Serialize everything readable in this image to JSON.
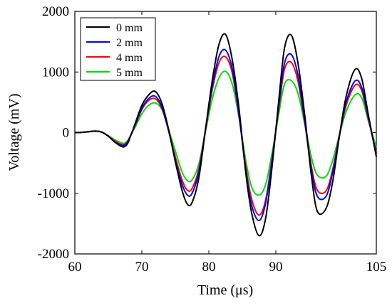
{
  "chart_data": {
    "type": "line",
    "title": "",
    "xlabel": "Time (μs)",
    "ylabel": "Voltage (mV)",
    "xlim": [
      60,
      105
    ],
    "ylim": [
      -2000,
      2000
    ],
    "x_ticks": [
      60,
      70,
      80,
      90,
      105
    ],
    "y_ticks": [
      -2000,
      -1000,
      0,
      1000,
      2000
    ],
    "grid": false,
    "legend_position": "top-left",
    "series": [
      {
        "name": "0 mm",
        "color": "#000000",
        "x": [
          60,
          61,
          62,
          63,
          64,
          65,
          66,
          67,
          67.5,
          68,
          69,
          70,
          71,
          72,
          73,
          74,
          75,
          76,
          76.8,
          77.5,
          78.5,
          79.5,
          80.5,
          81.5,
          82.5,
          83.5,
          84.5,
          85.5,
          86.4,
          87.5,
          88.5,
          89.5,
          90.5,
          91.3,
          92.3,
          93.3,
          94.3,
          95.3,
          96.2,
          97.5,
          98.5,
          99.5,
          100.5,
          101.8,
          102.8,
          103.8,
          105
        ],
        "y": [
          0,
          5,
          15,
          25,
          10,
          -60,
          -160,
          -230,
          -225,
          -150,
          150,
          450,
          620,
          680,
          480,
          50,
          -480,
          -950,
          -1180,
          -1150,
          -750,
          50,
          850,
          1450,
          1620,
          1200,
          400,
          -650,
          -1330,
          -1700,
          -1400,
          -500,
          600,
          1400,
          1610,
          1150,
          300,
          -700,
          -1300,
          -1250,
          -800,
          -50,
          600,
          1040,
          900,
          300,
          -400
        ]
      },
      {
        "name": "2 mm",
        "color": "#0000ff",
        "x": [
          60,
          61,
          62,
          63,
          64,
          65,
          66,
          67,
          67.5,
          68,
          69,
          70,
          71,
          72,
          73,
          74,
          75,
          76,
          76.8,
          77.5,
          78.5,
          79.5,
          80.5,
          81.5,
          82.5,
          83.5,
          84.5,
          85.5,
          86.4,
          87.5,
          88.5,
          89.5,
          90.5,
          91.3,
          92.3,
          93.3,
          94.3,
          95.3,
          96.2,
          97.5,
          98.5,
          99.5,
          100.5,
          101.8,
          102.8,
          103.8,
          105
        ],
        "y": [
          0,
          5,
          15,
          25,
          10,
          -60,
          -150,
          -210,
          -200,
          -130,
          130,
          400,
          560,
          600,
          420,
          30,
          -450,
          -850,
          -1030,
          -1000,
          -650,
          50,
          750,
          1250,
          1360,
          1050,
          300,
          -600,
          -1200,
          -1450,
          -1150,
          -400,
          500,
          1150,
          1290,
          950,
          200,
          -600,
          -1050,
          -1050,
          -650,
          -50,
          500,
          850,
          750,
          250,
          -350
        ]
      },
      {
        "name": "4 mm",
        "color": "#ff0000",
        "x": [
          60,
          61,
          62,
          63,
          64,
          65,
          66,
          67,
          67.5,
          68,
          69,
          70,
          71,
          72,
          73,
          74,
          75,
          76,
          76.8,
          77.5,
          78.5,
          79.5,
          80.5,
          81.5,
          82.5,
          83.5,
          84.5,
          85.5,
          86.4,
          87.5,
          88.5,
          89.5,
          90.5,
          91.3,
          92.3,
          93.3,
          94.3,
          95.3,
          96.2,
          97.5,
          98.5,
          99.5,
          100.5,
          101.8,
          102.8,
          103.8,
          105
        ],
        "y": [
          0,
          5,
          15,
          25,
          10,
          -55,
          -140,
          -195,
          -185,
          -120,
          120,
          380,
          530,
          560,
          400,
          30,
          -400,
          -780,
          -950,
          -920,
          -600,
          50,
          700,
          1150,
          1250,
          980,
          280,
          -550,
          -1100,
          -1360,
          -1100,
          -380,
          450,
          1050,
          1160,
          850,
          180,
          -550,
          -950,
          -960,
          -600,
          -40,
          450,
          780,
          700,
          230,
          -330
        ]
      },
      {
        "name": "5 mm",
        "color": "#00dd00",
        "x": [
          60,
          61,
          62,
          63,
          64,
          65,
          66,
          67,
          67.5,
          68,
          69,
          70,
          71,
          72,
          73,
          74,
          75,
          76,
          76.8,
          77.5,
          78.5,
          79.5,
          80.5,
          81.5,
          82.5,
          83.5,
          84.5,
          85.5,
          86.4,
          87.5,
          88.5,
          89.5,
          90.5,
          91.3,
          92.3,
          93.3,
          94.3,
          95.3,
          96.2,
          97.5,
          98.5,
          99.5,
          100.5,
          101.8,
          102.8,
          103.8,
          105
        ],
        "y": [
          0,
          5,
          15,
          25,
          10,
          -50,
          -120,
          -170,
          -170,
          -110,
          90,
          310,
          450,
          490,
          380,
          50,
          -300,
          -650,
          -790,
          -780,
          -520,
          20,
          550,
          900,
          1010,
          800,
          250,
          -450,
          -900,
          -1030,
          -850,
          -300,
          350,
          800,
          860,
          650,
          150,
          -400,
          -700,
          -720,
          -450,
          -30,
          350,
          620,
          580,
          200,
          -250
        ]
      }
    ]
  }
}
